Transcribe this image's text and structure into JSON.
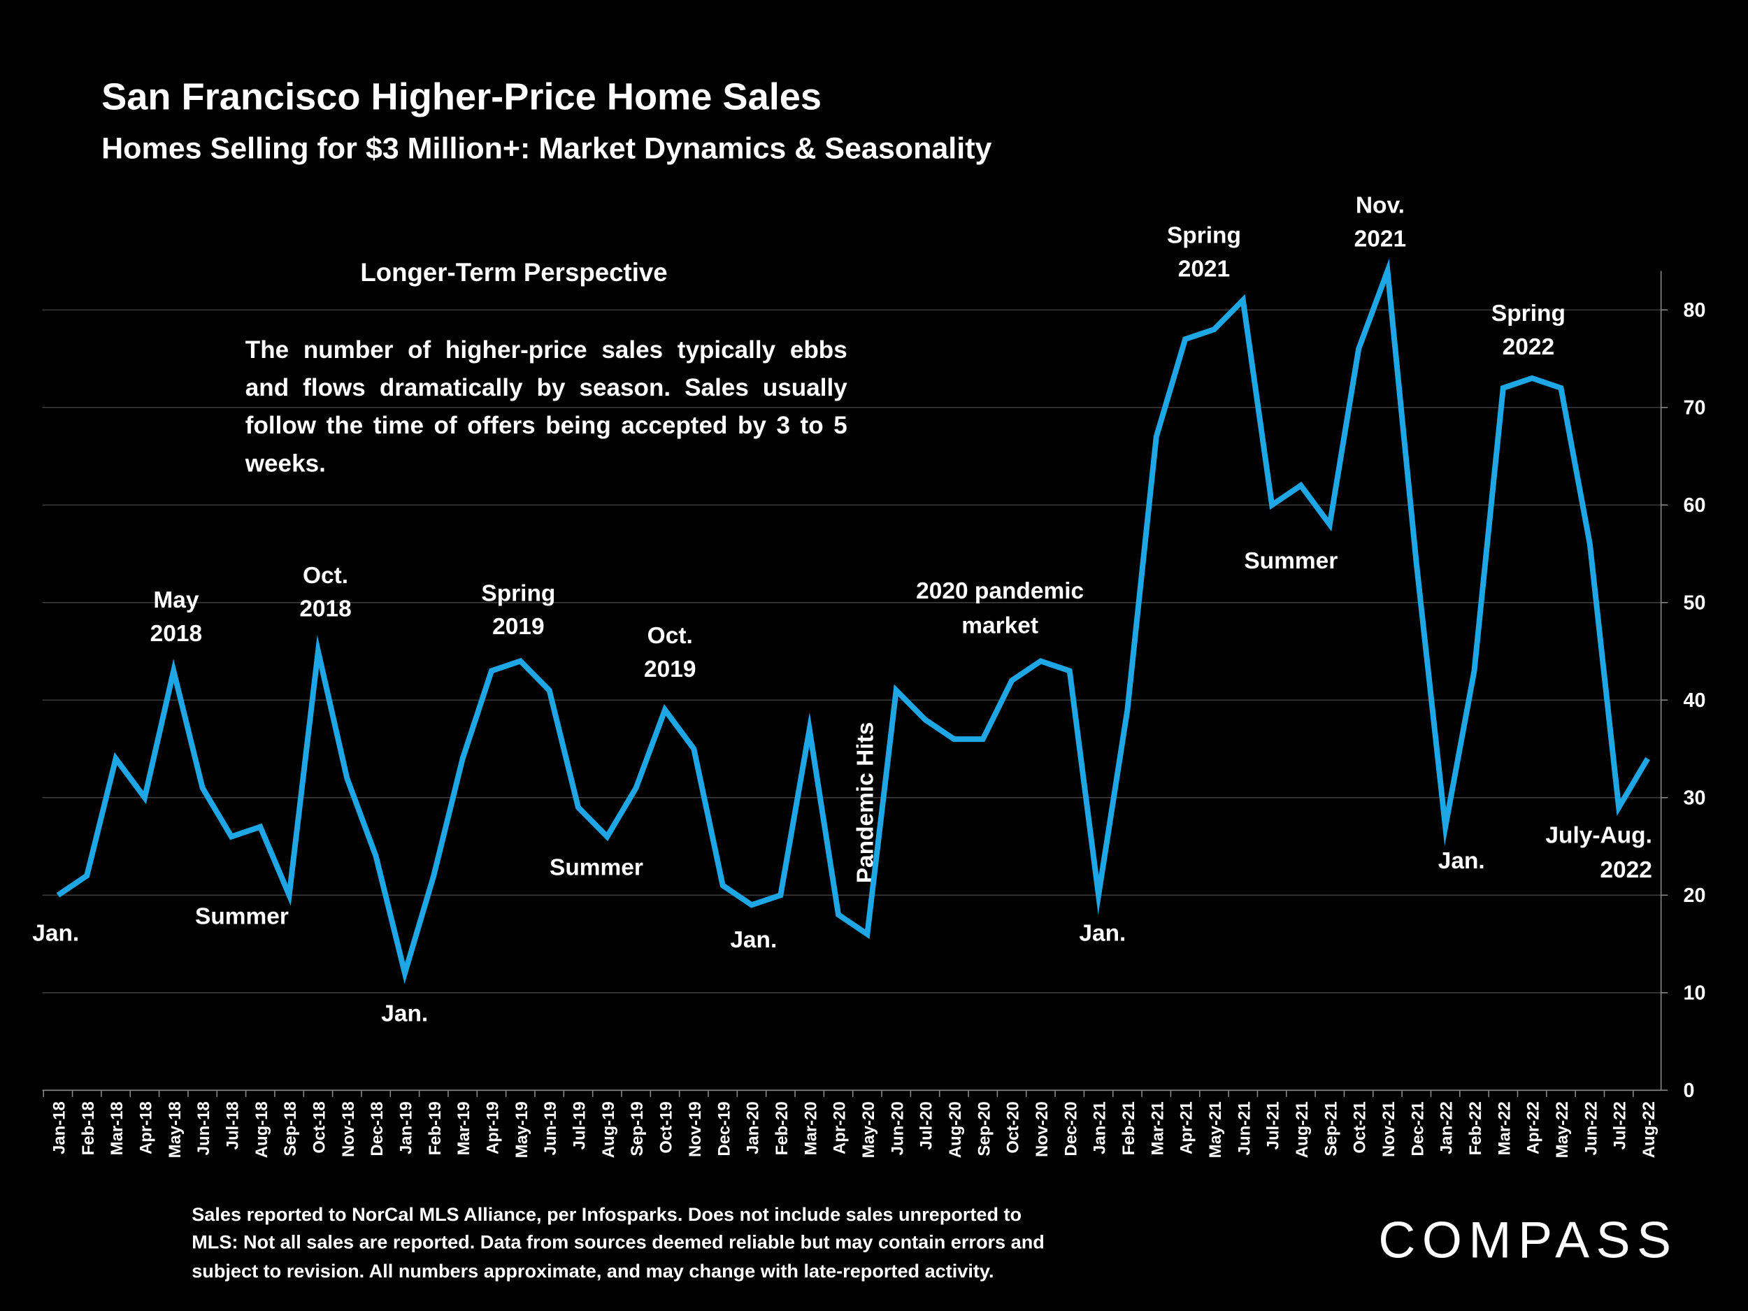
{
  "chart_data": {
    "type": "line",
    "title": "San Francisco Higher-Price Home Sales",
    "subtitle": "Homes Selling for  $3 Million+: Market Dynamics & Seasonality",
    "panel_heading": "Longer-Term Perspective",
    "panel_text": "The number of higher-price sales typically ebbs and flows dramatically by season. Sales usually follow the time of offers being accepted by 3 to 5 weeks.",
    "categories": [
      "Jan-18",
      "Feb-18",
      "Mar-18",
      "Apr-18",
      "May-18",
      "Jun-18",
      "Jul-18",
      "Aug-18",
      "Sep-18",
      "Oct-18",
      "Nov-18",
      "Dec-18",
      "Jan-19",
      "Feb-19",
      "Mar-19",
      "Apr-19",
      "May-19",
      "Jun-19",
      "Jul-19",
      "Aug-19",
      "Sep-19",
      "Oct-19",
      "Nov-19",
      "Dec-19",
      "Jan-20",
      "Feb-20",
      "Mar-20",
      "Apr-20",
      "May-20",
      "Jun-20",
      "Jul-20",
      "Aug-20",
      "Sep-20",
      "Oct-20",
      "Nov-20",
      "Dec-20",
      "Jan-21",
      "Feb-21",
      "Mar-21",
      "Apr-21",
      "May-21",
      "Jun-21",
      "Jul-21",
      "Aug-21",
      "Sep-21",
      "Oct-21",
      "Nov-21",
      "Dec-21",
      "Jan-22",
      "Feb-22",
      "Mar-22",
      "Apr-22",
      "May-22",
      "Jun-22",
      "Jul-22",
      "Aug-22"
    ],
    "values": [
      20,
      22,
      34,
      30,
      43,
      31,
      26,
      27,
      20,
      45,
      32,
      24,
      12,
      22,
      34,
      43,
      44,
      41,
      29,
      26,
      31,
      39,
      35,
      21,
      19,
      20,
      37,
      18,
      16,
      41,
      38,
      36,
      36,
      42,
      44,
      43,
      20,
      39,
      67,
      77,
      78,
      81,
      60,
      62,
      58,
      76,
      84,
      54,
      27,
      43,
      72,
      73,
      72,
      56,
      29,
      34
    ],
    "color": "#1ea7e4",
    "ylim": [
      0,
      84
    ],
    "yticks": [
      0,
      10,
      20,
      30,
      40,
      50,
      60,
      70,
      80
    ],
    "grid": true,
    "annotations": [
      [
        "Jan."
      ],
      [
        "May",
        "2018"
      ],
      [
        "Summer"
      ],
      [
        "Oct.",
        "2018"
      ],
      [
        "Jan."
      ],
      [
        "Spring",
        "2019"
      ],
      [
        "Summer"
      ],
      [
        "Oct.",
        "2019"
      ],
      [
        "Jan."
      ],
      [
        "Pandemic Hits"
      ],
      [
        "2020 pandemic",
        "market"
      ],
      [
        "Jan."
      ],
      [
        "Spring",
        "2021"
      ],
      [
        "Summer"
      ],
      [
        "Nov.",
        "2021"
      ],
      [
        "Jan."
      ],
      [
        "Spring",
        "2022"
      ],
      [
        "July-Aug.",
        "2022"
      ]
    ],
    "footnote": [
      "Sales reported to NorCal MLS Alliance, per Infosparks. Does not include sales unreported to",
      "MLS: Not all sales are reported. Data from sources deemed reliable but may contain errors and",
      "subject to revision.  All numbers approximate, and may change with late-reported activity."
    ],
    "logo": "COMPASS"
  }
}
